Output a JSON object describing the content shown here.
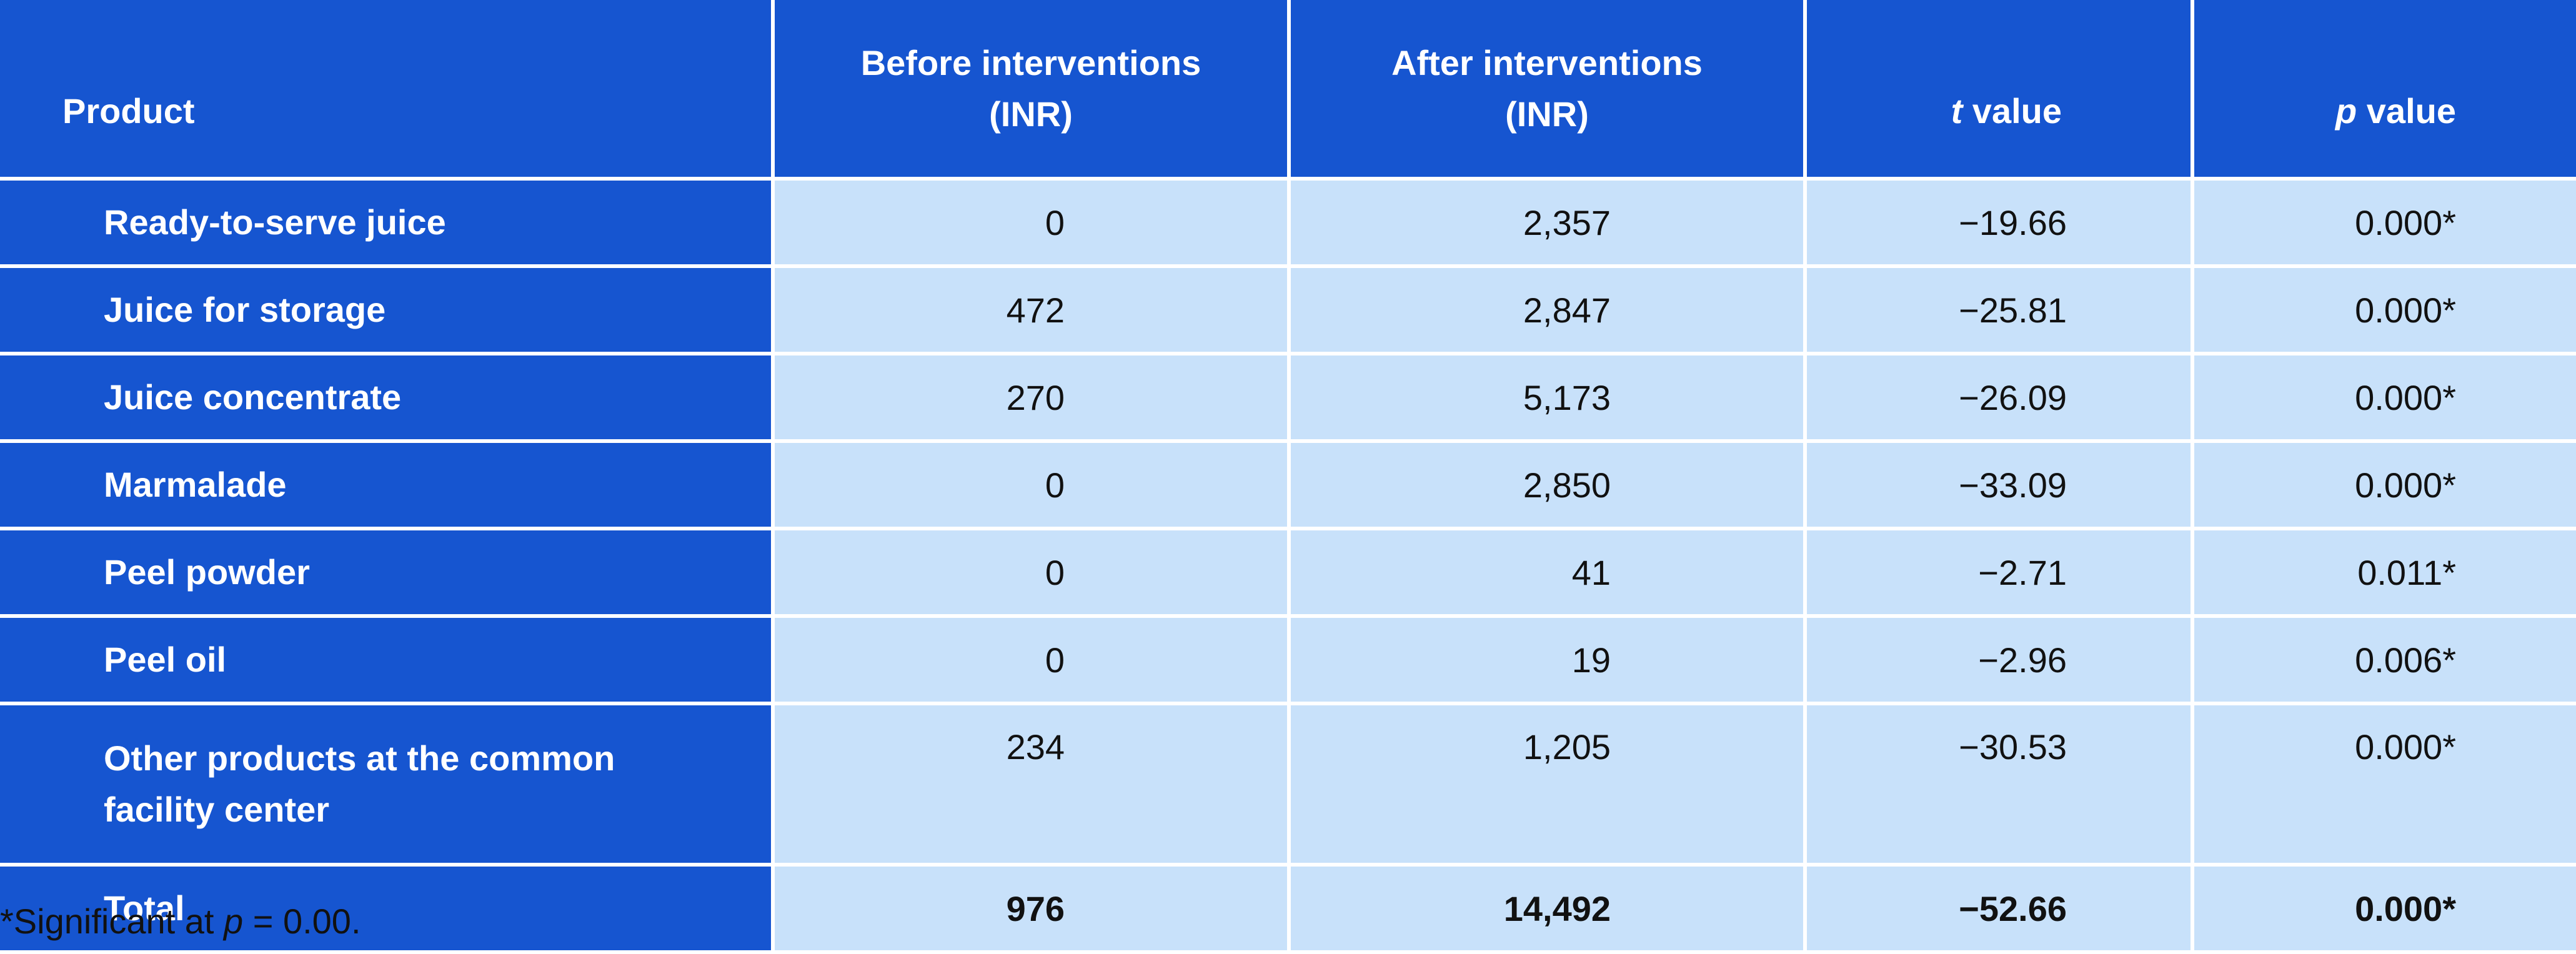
{
  "table": {
    "headers": {
      "product": "Product",
      "before_line1": "Before interventions",
      "before_line2": "(INR)",
      "after_line1": "After interventions",
      "after_line2": "(INR)",
      "t_italic": "t",
      "t_rest": " value",
      "p_italic": "p",
      "p_rest": " value"
    },
    "rows": [
      {
        "product": "Ready-to-serve juice",
        "before": "0",
        "after": "2,357",
        "t": "−19.66",
        "p": "0.000*"
      },
      {
        "product": "Juice for storage",
        "before": "472",
        "after": "2,847",
        "t": "−25.81",
        "p": "0.000*"
      },
      {
        "product": "Juice concentrate",
        "before": "270",
        "after": "5,173",
        "t": "−26.09",
        "p": "0.000*"
      },
      {
        "product": "Marmalade",
        "before": "0",
        "after": "2,850",
        "t": "−33.09",
        "p": "0.000*"
      },
      {
        "product": "Peel powder",
        "before": "0",
        "after": "41",
        "t": "−2.71",
        "p": "0.011*"
      },
      {
        "product": "Peel oil",
        "before": "0",
        "after": "19",
        "t": "−2.96",
        "p": "0.006*"
      },
      {
        "product_line1": "Other products at the common",
        "product_line2": "facility center",
        "before": "234",
        "after": "1,205",
        "t": "−30.53",
        "p": "0.000*"
      },
      {
        "product": "Total",
        "before": "976",
        "after": "14,492",
        "t": "−52.66",
        "p": "0.000*"
      }
    ]
  },
  "footnote": {
    "prefix": "*Significant at ",
    "italic": "p",
    "suffix": " = 0.00."
  },
  "colors": {
    "header_blue": "#1655d0",
    "cell_light_blue": "#c8e1fa",
    "header_text": "#ffffff"
  }
}
